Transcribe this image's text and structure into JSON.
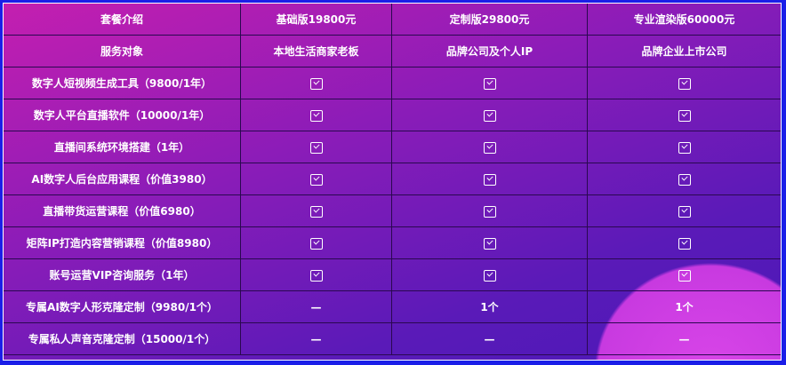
{
  "header": [
    "套餐介绍",
    "基础版19800元",
    "定制版29800元",
    "专业渲染版60000元"
  ],
  "audience": [
    "服务对象",
    "本地生活商家老板",
    "品牌公司及个人IP",
    "品牌企业上市公司"
  ],
  "rows": [
    {
      "label": "数字人短视频生成工具（9800/1年）",
      "cells": [
        "check",
        "check",
        "check"
      ]
    },
    {
      "label": "数字人平台直播软件（10000/1年）",
      "cells": [
        "check",
        "check",
        "check"
      ]
    },
    {
      "label": "直播间系统环境搭建（1年）",
      "cells": [
        "check",
        "check",
        "check"
      ]
    },
    {
      "label": "AI数字人后台应用课程（价值3980）",
      "cells": [
        "check",
        "check",
        "check"
      ]
    },
    {
      "label": "直播带货运营课程（价值6980）",
      "cells": [
        "check",
        "check",
        "check"
      ]
    },
    {
      "label": "矩阵IP打造内容营销课程（价值8980）",
      "cells": [
        "check",
        "check",
        "check"
      ]
    },
    {
      "label": "账号运营VIP咨询服务（1年）",
      "cells": [
        "check",
        "check",
        "check"
      ]
    },
    {
      "label": "专属AI数字人形克隆定制（9980/1个）",
      "cells": [
        "—",
        "1个",
        "1个"
      ]
    },
    {
      "label": "专属私人声音克隆定制（15000/1个）",
      "cells": [
        "—",
        "—",
        "—"
      ]
    }
  ],
  "colors": {
    "border_blue": "#1a1ee8",
    "bg_start": "#c41fb0",
    "bg_end": "#4a18b8"
  }
}
